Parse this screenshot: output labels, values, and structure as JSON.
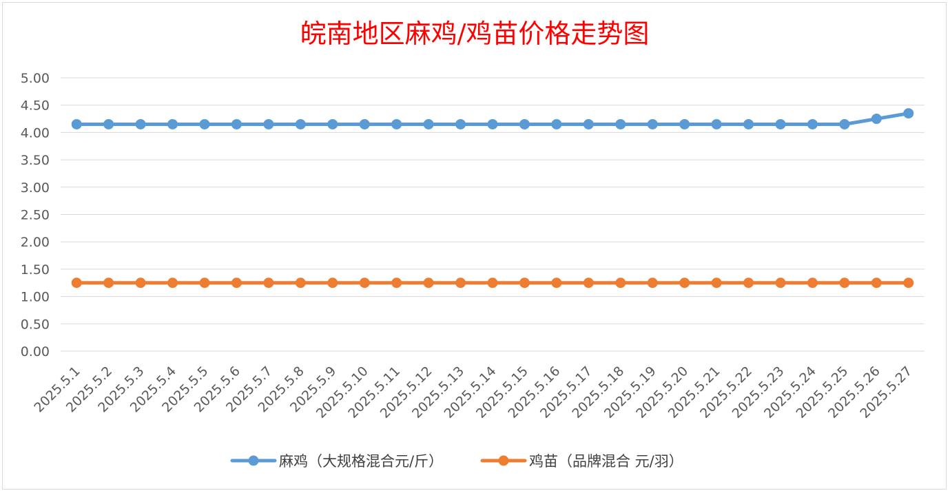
{
  "chart_data": {
    "type": "line",
    "title": "皖南地区麻鸡/鸡苗价格走势图",
    "xlabel": "",
    "ylabel": "",
    "ylim": [
      0,
      5
    ],
    "ytick_step": 0.5,
    "ytick_decimals": 2,
    "grid": true,
    "legend_position": "bottom",
    "categories": [
      "2025.5.1",
      "2025.5.2",
      "2025.5.3",
      "2025.5.4",
      "2025.5.5",
      "2025.5.6",
      "2025.5.7",
      "2025.5.8",
      "2025.5.9",
      "2025.5.10",
      "2025.5.11",
      "2025.5.12",
      "2025.5.13",
      "2025.5.14",
      "2025.5.15",
      "2025.5.16",
      "2025.5.17",
      "2025.5.18",
      "2025.5.19",
      "2025.5.20",
      "2025.5.21",
      "2025.5.22",
      "2025.5.23",
      "2025.5.24",
      "2025.5.25",
      "2025.5.26",
      "2025.5.27"
    ],
    "series": [
      {
        "name": "麻鸡（大规格混合元/斤）",
        "color": "#5b9bd5",
        "values": [
          4.15,
          4.15,
          4.15,
          4.15,
          4.15,
          4.15,
          4.15,
          4.15,
          4.15,
          4.15,
          4.15,
          4.15,
          4.15,
          4.15,
          4.15,
          4.15,
          4.15,
          4.15,
          4.15,
          4.15,
          4.15,
          4.15,
          4.15,
          4.15,
          4.15,
          4.25,
          4.35
        ]
      },
      {
        "name": "鸡苗（品牌混合 元/羽）",
        "color": "#ed7d31",
        "values": [
          1.25,
          1.25,
          1.25,
          1.25,
          1.25,
          1.25,
          1.25,
          1.25,
          1.25,
          1.25,
          1.25,
          1.25,
          1.25,
          1.25,
          1.25,
          1.25,
          1.25,
          1.25,
          1.25,
          1.25,
          1.25,
          1.25,
          1.25,
          1.25,
          1.25,
          1.25,
          1.25
        ]
      }
    ]
  }
}
